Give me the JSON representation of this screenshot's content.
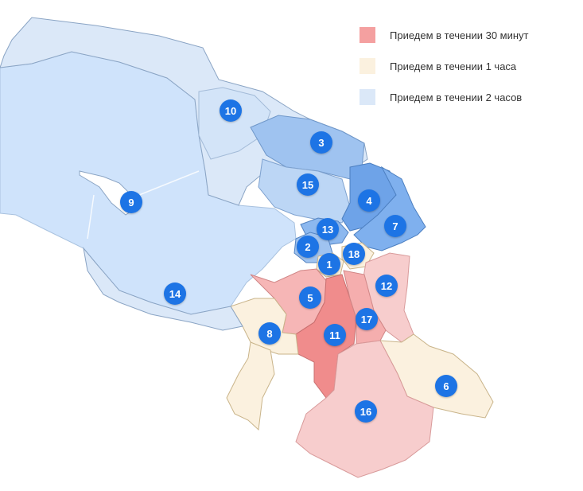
{
  "colors": {
    "zone_30min": "#f4a0a0",
    "zone_1h": "#fbf1df",
    "zone_2h": "#dbe8f8",
    "marker": "#1d74e5",
    "water": "#cfe3fb"
  },
  "legend": [
    {
      "label": "Приедем в течении 30 минут",
      "color": "#f4a0a0"
    },
    {
      "label": "Приедем в течении 1 часа",
      "color": "#fbf1df"
    },
    {
      "label": "Приедем в течении 2 часов",
      "color": "#dbe8f8"
    }
  ],
  "districts": [
    {
      "number": "1",
      "zone": "1h"
    },
    {
      "number": "2",
      "zone": "2h"
    },
    {
      "number": "3",
      "zone": "2h"
    },
    {
      "number": "4",
      "zone": "2h"
    },
    {
      "number": "5",
      "zone": "30min"
    },
    {
      "number": "6",
      "zone": "1h"
    },
    {
      "number": "7",
      "zone": "2h"
    },
    {
      "number": "8",
      "zone": "1h"
    },
    {
      "number": "9",
      "zone": "2h"
    },
    {
      "number": "10",
      "zone": "2h"
    },
    {
      "number": "11",
      "zone": "30min"
    },
    {
      "number": "12",
      "zone": "30min"
    },
    {
      "number": "13",
      "zone": "2h"
    },
    {
      "number": "14",
      "zone": "2h"
    },
    {
      "number": "15",
      "zone": "2h"
    },
    {
      "number": "16",
      "zone": "30min"
    },
    {
      "number": "17",
      "zone": "30min"
    },
    {
      "number": "18",
      "zone": "1h"
    }
  ]
}
